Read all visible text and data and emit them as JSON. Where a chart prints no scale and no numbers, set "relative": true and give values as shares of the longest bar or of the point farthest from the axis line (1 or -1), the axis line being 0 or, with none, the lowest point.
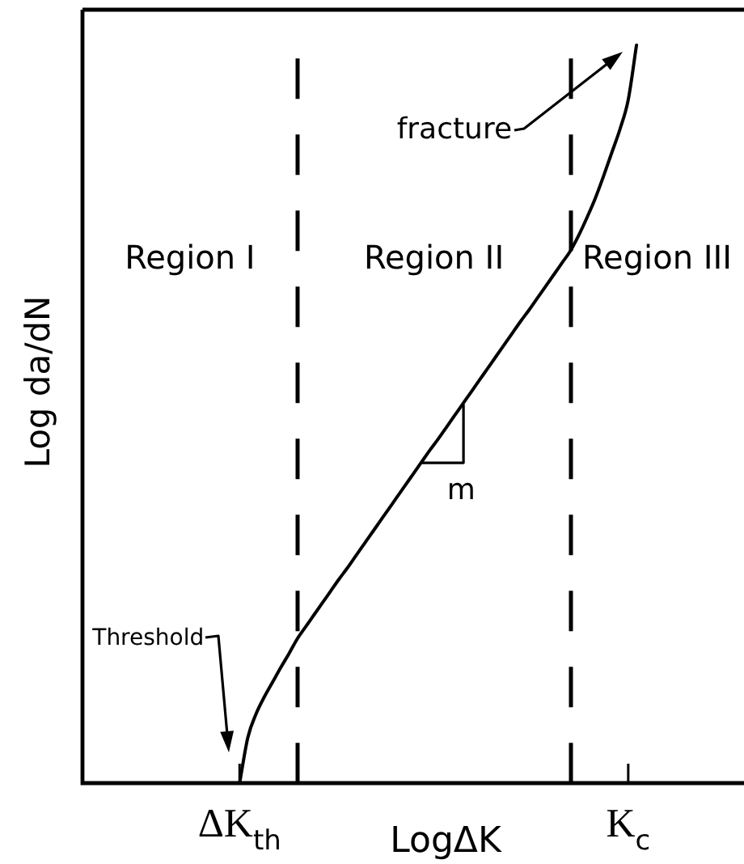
{
  "chart_data": {
    "type": "line",
    "xlabel": "LogΔK",
    "ylabel": "Log da/dN",
    "relative": true,
    "categories": [
      null,
      null,
      null,
      null,
      null,
      null,
      null,
      null,
      null,
      null,
      null,
      null,
      null,
      null,
      null,
      null,
      null,
      null,
      null,
      "ΔK$_{th}$",
      null,
      null,
      null,
      null,
      null,
      null,
      null,
      null,
      null,
      null,
      null,
      null,
      null,
      null,
      null,
      null,
      null,
      null,
      null,
      null,
      null,
      null,
      null,
      null,
      null,
      null,
      null,
      null,
      null,
      null,
      null,
      null,
      null,
      null,
      null,
      null,
      null,
      null,
      null,
      null,
      null,
      null,
      null,
      null,
      null,
      null,
      "K$_{c}$",
      null,
      null,
      null,
      null,
      null,
      null,
      null,
      null,
      null,
      null,
      null,
      null,
      null,
      null
    ],
    "series": [
      {
        "color": "#000000",
        "values": [
          null,
          null,
          null,
          null,
          null,
          null,
          null,
          null,
          null,
          null,
          null,
          null,
          null,
          null,
          null,
          null,
          null,
          null,
          null,
          0,
          0.062,
          0.094,
          0.117,
          0.137,
          0.157,
          0.176,
          0.196,
          0.212,
          0.228,
          0.244,
          0.26,
          0.276,
          0.291,
          0.307,
          0.323,
          0.339,
          0.355,
          0.371,
          0.387,
          0.403,
          0.419,
          0.435,
          0.451,
          0.466,
          0.482,
          0.498,
          0.514,
          0.53,
          0.546,
          0.562,
          0.578,
          0.594,
          0.61,
          0.626,
          0.641,
          0.657,
          0.673,
          0.689,
          0.705,
          0.721,
          0.742,
          0.766,
          0.792,
          0.822,
          0.854,
          0.886,
          0.926,
          1,
          null,
          null,
          null,
          null,
          null,
          null,
          null,
          null,
          null,
          null,
          null,
          null,
          null
        ]
      }
    ],
    "annotations": [
      "Region I",
      "Region II",
      "Region III",
      "fracture",
      "Threshold",
      "m"
    ],
    "marker": "none",
    "line_style": "solid"
  }
}
